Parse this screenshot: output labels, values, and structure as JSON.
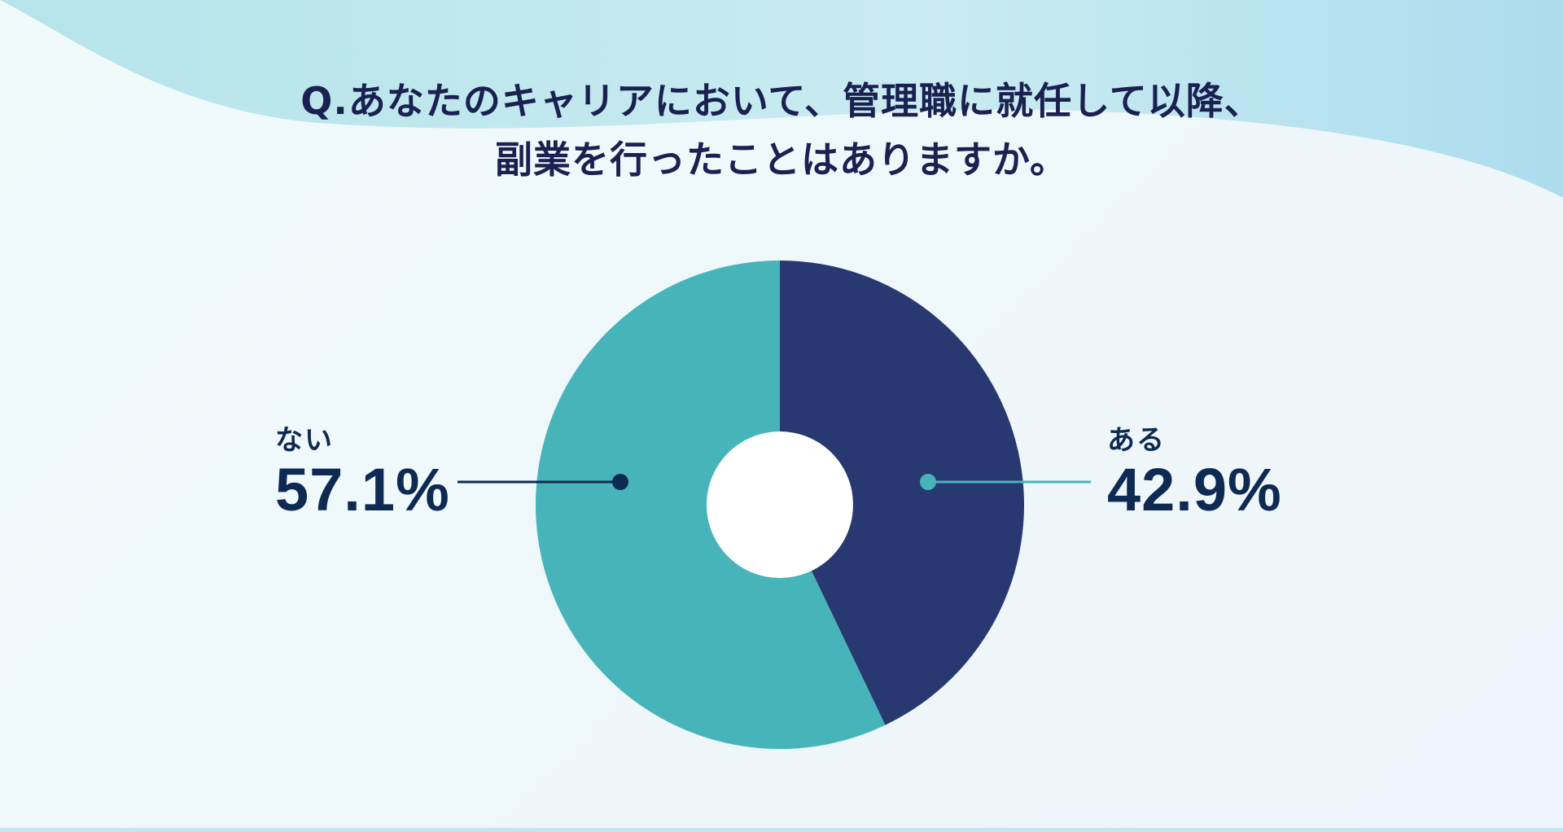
{
  "chart_data": {
    "type": "pie",
    "style": "donut",
    "title_lines": [
      "Q.あなたのキャリアにおいて、管理職に就任して以降、",
      "副業を行ったことはありますか。"
    ],
    "slices": [
      {
        "label": "ある",
        "value": 42.9,
        "display": "42.9%",
        "color": "#283972"
      },
      {
        "label": "ない",
        "value": 57.1,
        "display": "57.1%",
        "color": "#47b4ba"
      }
    ],
    "start_angle": "12 o'clock",
    "direction": "clockwise",
    "legend": "none (callout labels left and right)"
  }
}
